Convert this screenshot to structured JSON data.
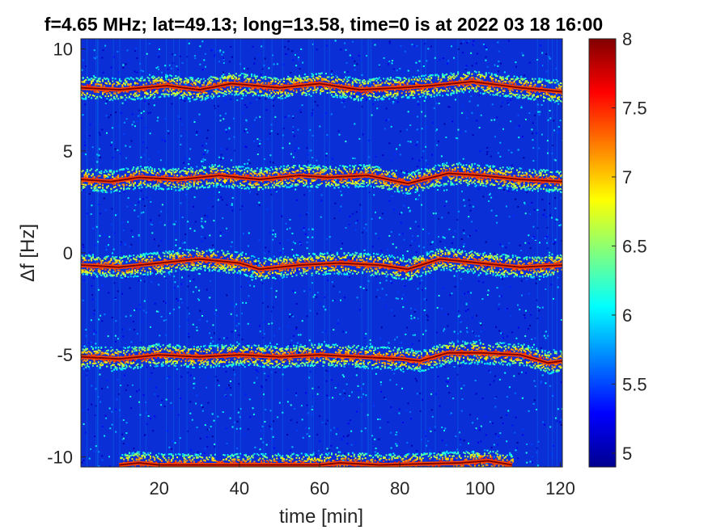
{
  "chart_data": {
    "type": "heatmap",
    "title": "f=4.65 MHz;  lat=49.13; long=13.58, time=0 is at 2022 03 18 16:00",
    "xlabel": "time [min]",
    "ylabel": "Δf [Hz]",
    "xlim": [
      0.5,
      120.5
    ],
    "ylim": [
      -10.5,
      10.5
    ],
    "xticks": [
      20,
      40,
      60,
      80,
      100,
      120
    ],
    "xtick_labels": [
      "20",
      "40",
      "60",
      "80",
      "100",
      "120"
    ],
    "yticks": [
      10,
      5,
      0,
      -5,
      -10
    ],
    "ytick_labels": [
      "10",
      "5",
      "0",
      "-5",
      "-10"
    ],
    "colorbar": {
      "colormap": "jet",
      "range": [
        4.9,
        8
      ],
      "ticks": [
        8,
        7.5,
        7,
        6.5,
        6,
        5.5,
        5
      ],
      "tick_labels": [
        "8",
        "7.5",
        "7",
        "6.5",
        "6",
        "5.5",
        "5"
      ]
    },
    "background_level": 5.2,
    "series": [
      {
        "peak_level": 8.0,
        "points": [
          [
            0.5,
            8.1
          ],
          [
            10,
            8.0
          ],
          [
            22,
            8.2
          ],
          [
            30,
            8.0
          ],
          [
            38,
            8.3
          ],
          [
            50,
            8.1
          ],
          [
            60,
            8.3
          ],
          [
            70,
            8.0
          ],
          [
            80,
            8.1
          ],
          [
            88,
            8.2
          ],
          [
            98,
            8.4
          ],
          [
            110,
            8.1
          ],
          [
            120.5,
            7.9
          ]
        ]
      },
      {
        "peak_level": 8.0,
        "points": [
          [
            0.5,
            3.6
          ],
          [
            8,
            3.5
          ],
          [
            15,
            3.7
          ],
          [
            25,
            3.6
          ],
          [
            35,
            3.8
          ],
          [
            45,
            3.6
          ],
          [
            55,
            3.8
          ],
          [
            62,
            3.7
          ],
          [
            72,
            3.8
          ],
          [
            82,
            3.4
          ],
          [
            92,
            3.9
          ],
          [
            100,
            3.8
          ],
          [
            110,
            3.6
          ],
          [
            120.5,
            3.5
          ]
        ]
      },
      {
        "peak_level": 8.0,
        "points": [
          [
            0.5,
            -0.6
          ],
          [
            10,
            -0.7
          ],
          [
            20,
            -0.5
          ],
          [
            30,
            -0.3
          ],
          [
            40,
            -0.5
          ],
          [
            45,
            -0.8
          ],
          [
            55,
            -0.6
          ],
          [
            65,
            -0.5
          ],
          [
            75,
            -0.6
          ],
          [
            82,
            -0.8
          ],
          [
            90,
            -0.3
          ],
          [
            100,
            -0.5
          ],
          [
            110,
            -0.7
          ],
          [
            120.5,
            -0.6
          ]
        ]
      },
      {
        "peak_level": 8.0,
        "points": [
          [
            0.5,
            -5.1
          ],
          [
            10,
            -5.2
          ],
          [
            20,
            -5.0
          ],
          [
            30,
            -5.1
          ],
          [
            40,
            -5.0
          ],
          [
            50,
            -5.1
          ],
          [
            60,
            -5.0
          ],
          [
            70,
            -5.1
          ],
          [
            80,
            -5.2
          ],
          [
            85,
            -5.3
          ],
          [
            92,
            -4.9
          ],
          [
            100,
            -4.9
          ],
          [
            110,
            -5.0
          ],
          [
            117,
            -5.4
          ],
          [
            120.5,
            -5.3
          ]
        ]
      },
      {
        "peak_level": 8.0,
        "points": [
          [
            10,
            -10.4
          ],
          [
            15,
            -10.3
          ],
          [
            20,
            -10.4
          ],
          [
            60,
            -10.4
          ],
          [
            65,
            -10.3
          ],
          [
            75,
            -10.4
          ],
          [
            95,
            -10.3
          ],
          [
            102,
            -10.2
          ],
          [
            108,
            -10.4
          ]
        ]
      }
    ]
  }
}
